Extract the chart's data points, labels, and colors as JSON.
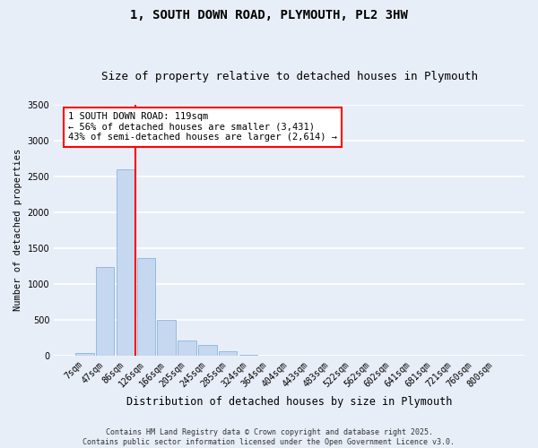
{
  "title": "1, SOUTH DOWN ROAD, PLYMOUTH, PL2 3HW",
  "subtitle": "Size of property relative to detached houses in Plymouth",
  "xlabel": "Distribution of detached houses by size in Plymouth",
  "ylabel": "Number of detached properties",
  "categories": [
    "7sqm",
    "47sqm",
    "86sqm",
    "126sqm",
    "166sqm",
    "205sqm",
    "245sqm",
    "285sqm",
    "324sqm",
    "364sqm",
    "404sqm",
    "443sqm",
    "483sqm",
    "522sqm",
    "562sqm",
    "602sqm",
    "641sqm",
    "681sqm",
    "721sqm",
    "760sqm",
    "800sqm"
  ],
  "values": [
    30,
    1230,
    2600,
    1360,
    500,
    210,
    150,
    60,
    10,
    0,
    0,
    0,
    0,
    0,
    0,
    0,
    0,
    0,
    0,
    0,
    0
  ],
  "bar_color": "#c5d8f0",
  "bar_edge_color": "#7aadd4",
  "vline_color": "red",
  "annotation_text": "1 SOUTH DOWN ROAD: 119sqm\n← 56% of detached houses are smaller (3,431)\n43% of semi-detached houses are larger (2,614) →",
  "annotation_box_color": "white",
  "annotation_box_edge_color": "red",
  "ylim": [
    0,
    3500
  ],
  "yticks": [
    0,
    500,
    1000,
    1500,
    2000,
    2500,
    3000,
    3500
  ],
  "background_color": "#e8eef8",
  "grid_color": "white",
  "footer": "Contains HM Land Registry data © Crown copyright and database right 2025.\nContains public sector information licensed under the Open Government Licence v3.0.",
  "title_fontsize": 10,
  "subtitle_fontsize": 9,
  "xlabel_fontsize": 8.5,
  "ylabel_fontsize": 7.5,
  "tick_fontsize": 7,
  "annotation_fontsize": 7.5,
  "footer_fontsize": 6
}
